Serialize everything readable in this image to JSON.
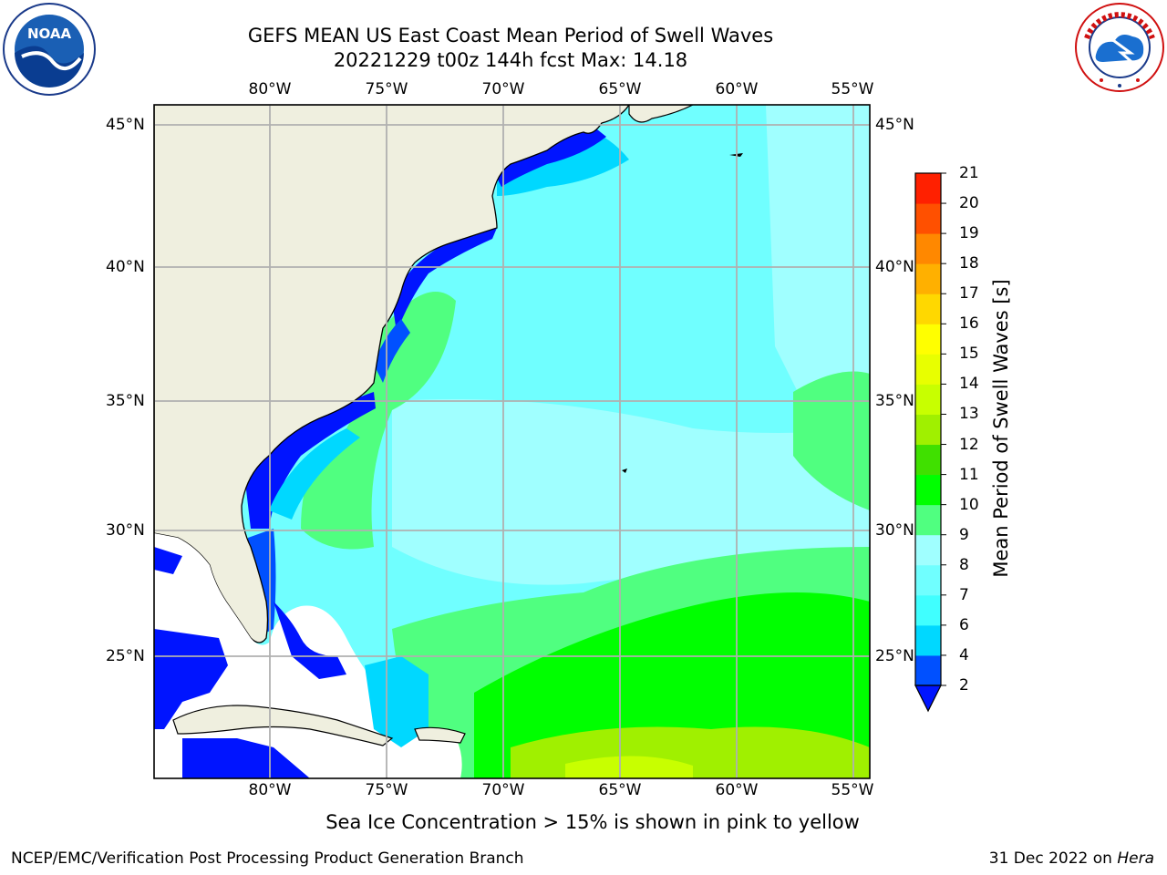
{
  "title_line1": "GEFS MEAN US East Coast Mean Period of Swell Waves",
  "title_line2": "20221229 t00z 144h fcst   Max: 14.18",
  "lon_labels": [
    "80°W",
    "75°W",
    "70°W",
    "65°W",
    "60°W",
    "55°W"
  ],
  "lat_labels": [
    "45°N",
    "40°N",
    "35°N",
    "30°N",
    "25°N"
  ],
  "colorbar": {
    "label": "Mean Period of Swell Waves [s]",
    "ticks": [
      "2",
      "4",
      "6",
      "7",
      "8",
      "9",
      "10",
      "11",
      "12",
      "13",
      "14",
      "15",
      "16",
      "17",
      "18",
      "19",
      "20",
      "21"
    ],
    "colors": [
      "#0050ff",
      "#00d8ff",
      "#40ffff",
      "#70ffff",
      "#a0ffff",
      "#50ff80",
      "#00ff00",
      "#40e000",
      "#a0f000",
      "#c8ff00",
      "#e8ff00",
      "#ffff00",
      "#ffd800",
      "#ffb000",
      "#ff8800",
      "#ff5000",
      "#ff2000"
    ],
    "extend_color": "#0014ff"
  },
  "legend": {
    "ocean_low": "#0014ff",
    "land": "#efefdf",
    "no_data": "#ffffff"
  },
  "footer_note": "Sea Ice Concentration > 15% is shown in pink to yellow",
  "credit": "NCEP/EMC/Verification Post Processing Product Generation Branch",
  "date": "31 Dec 2022 on",
  "host": "Hera",
  "logos": {
    "left": "noaa-logo",
    "right": "nws-logo"
  }
}
